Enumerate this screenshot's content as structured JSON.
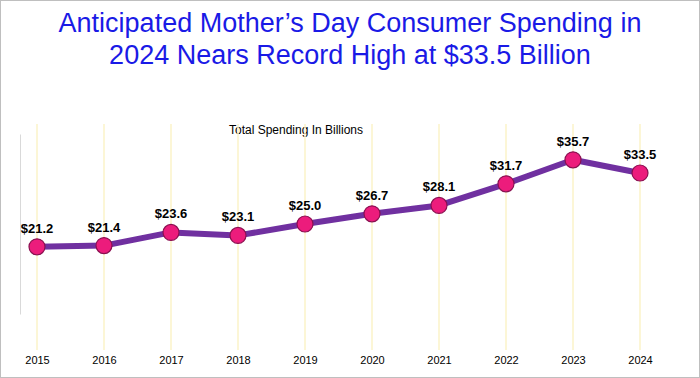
{
  "chart_data": {
    "type": "line",
    "title": "Anticipated Mother’s Day Consumer Spending in 2024 Nears Record High at $33.5 Billion",
    "subtitle": "Total Spending In Billions",
    "categories": [
      "2015",
      "2016",
      "2017",
      "2018",
      "2019",
      "2020",
      "2021",
      "2022",
      "2023",
      "2024"
    ],
    "values": [
      21.2,
      21.4,
      23.6,
      23.1,
      25.0,
      26.7,
      28.1,
      31.7,
      35.7,
      33.5
    ],
    "value_labels": [
      "$21.2",
      "$21.4",
      "$23.6",
      "$23.1",
      "$25.0",
      "$26.7",
      "$28.1",
      "$31.7",
      "$35.7",
      "$33.5"
    ],
    "ylim": [
      10,
      40
    ],
    "color": "#7030a0",
    "marker": "circle",
    "data_labels": true,
    "tick_labels": "x"
  }
}
